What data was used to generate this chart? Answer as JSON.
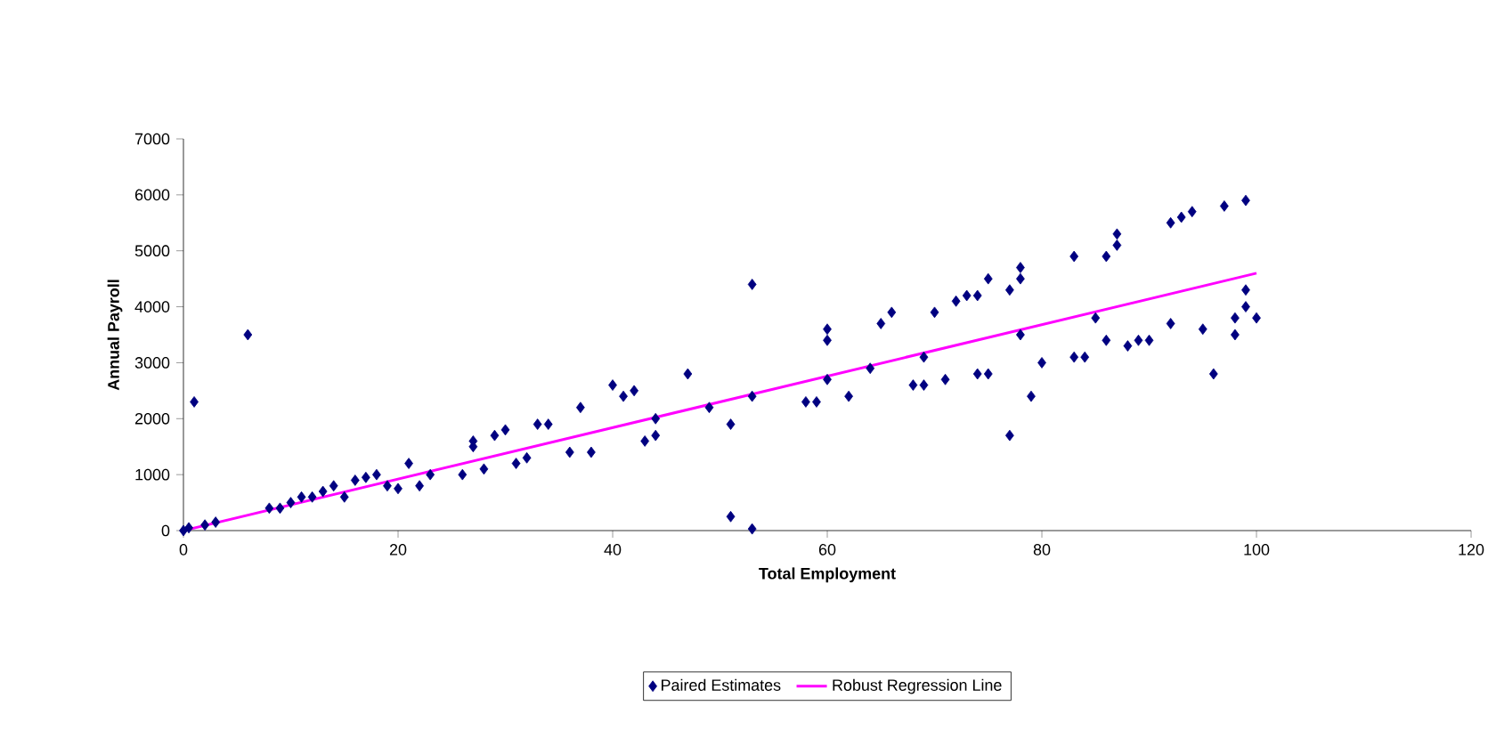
{
  "chart_data": {
    "type": "scatter",
    "xlabel": "Total Employment",
    "ylabel": "Annual Payroll",
    "xlim": [
      0,
      120
    ],
    "xticks": [
      0,
      20,
      40,
      60,
      80,
      100,
      120
    ],
    "ylim": [
      0,
      7000
    ],
    "yticks": [
      0,
      1000,
      2000,
      3000,
      4000,
      5000,
      6000,
      7000
    ],
    "grid": false,
    "legend": "bottom",
    "series": [
      {
        "name": "Paired Estimates",
        "marker": "diamond",
        "color": "#000080",
        "x": [
          0,
          0.5,
          1,
          2,
          3,
          6,
          8,
          9,
          10,
          11,
          12,
          13,
          14,
          15,
          16,
          17,
          18,
          19,
          20,
          21,
          22,
          23,
          26,
          27,
          27,
          28,
          29,
          30,
          31,
          32,
          33,
          34,
          36,
          37,
          38,
          40,
          41,
          42,
          43,
          44,
          44,
          47,
          49,
          51,
          51,
          53,
          53,
          53,
          58,
          59,
          60,
          60,
          60,
          62,
          64,
          65,
          66,
          68,
          69,
          69,
          70,
          71,
          72,
          73,
          74,
          74,
          75,
          75,
          77,
          78,
          78,
          78,
          77,
          79,
          80,
          83,
          83,
          84,
          85,
          86,
          86,
          87,
          87,
          88,
          89,
          90,
          92,
          92,
          93,
          94,
          95,
          96,
          97,
          98,
          98,
          99,
          99,
          100,
          99
        ],
        "values": [
          0,
          50,
          2300,
          100,
          150,
          3500,
          400,
          400,
          500,
          600,
          600,
          700,
          800,
          600,
          900,
          950,
          1000,
          800,
          750,
          1200,
          800,
          1000,
          1000,
          1500,
          1600,
          1100,
          1700,
          1800,
          1200,
          1300,
          1900,
          1900,
          1400,
          2200,
          1400,
          2600,
          2400,
          2500,
          1600,
          1700,
          2000,
          2800,
          2200,
          1900,
          250,
          2400,
          4400,
          30,
          2300,
          2300,
          3400,
          3600,
          2700,
          2400,
          2900,
          3700,
          3900,
          2600,
          2600,
          3100,
          3900,
          2700,
          4100,
          4200,
          4200,
          2800,
          4500,
          2800,
          4300,
          4500,
          4700,
          3500,
          1700,
          2400,
          3000,
          3100,
          4900,
          3100,
          3800,
          4900,
          3400,
          5100,
          5300,
          3300,
          3400,
          3400,
          5500,
          3700,
          5600,
          5700,
          3600,
          2800,
          5800,
          3800,
          3500,
          5900,
          4300,
          3800,
          4000
        ]
      },
      {
        "name": "Robust Regression Line",
        "type": "line",
        "marker": "none",
        "color": "#ff00ff",
        "x": [
          0,
          100
        ],
        "values": [
          0,
          4600
        ]
      }
    ]
  }
}
